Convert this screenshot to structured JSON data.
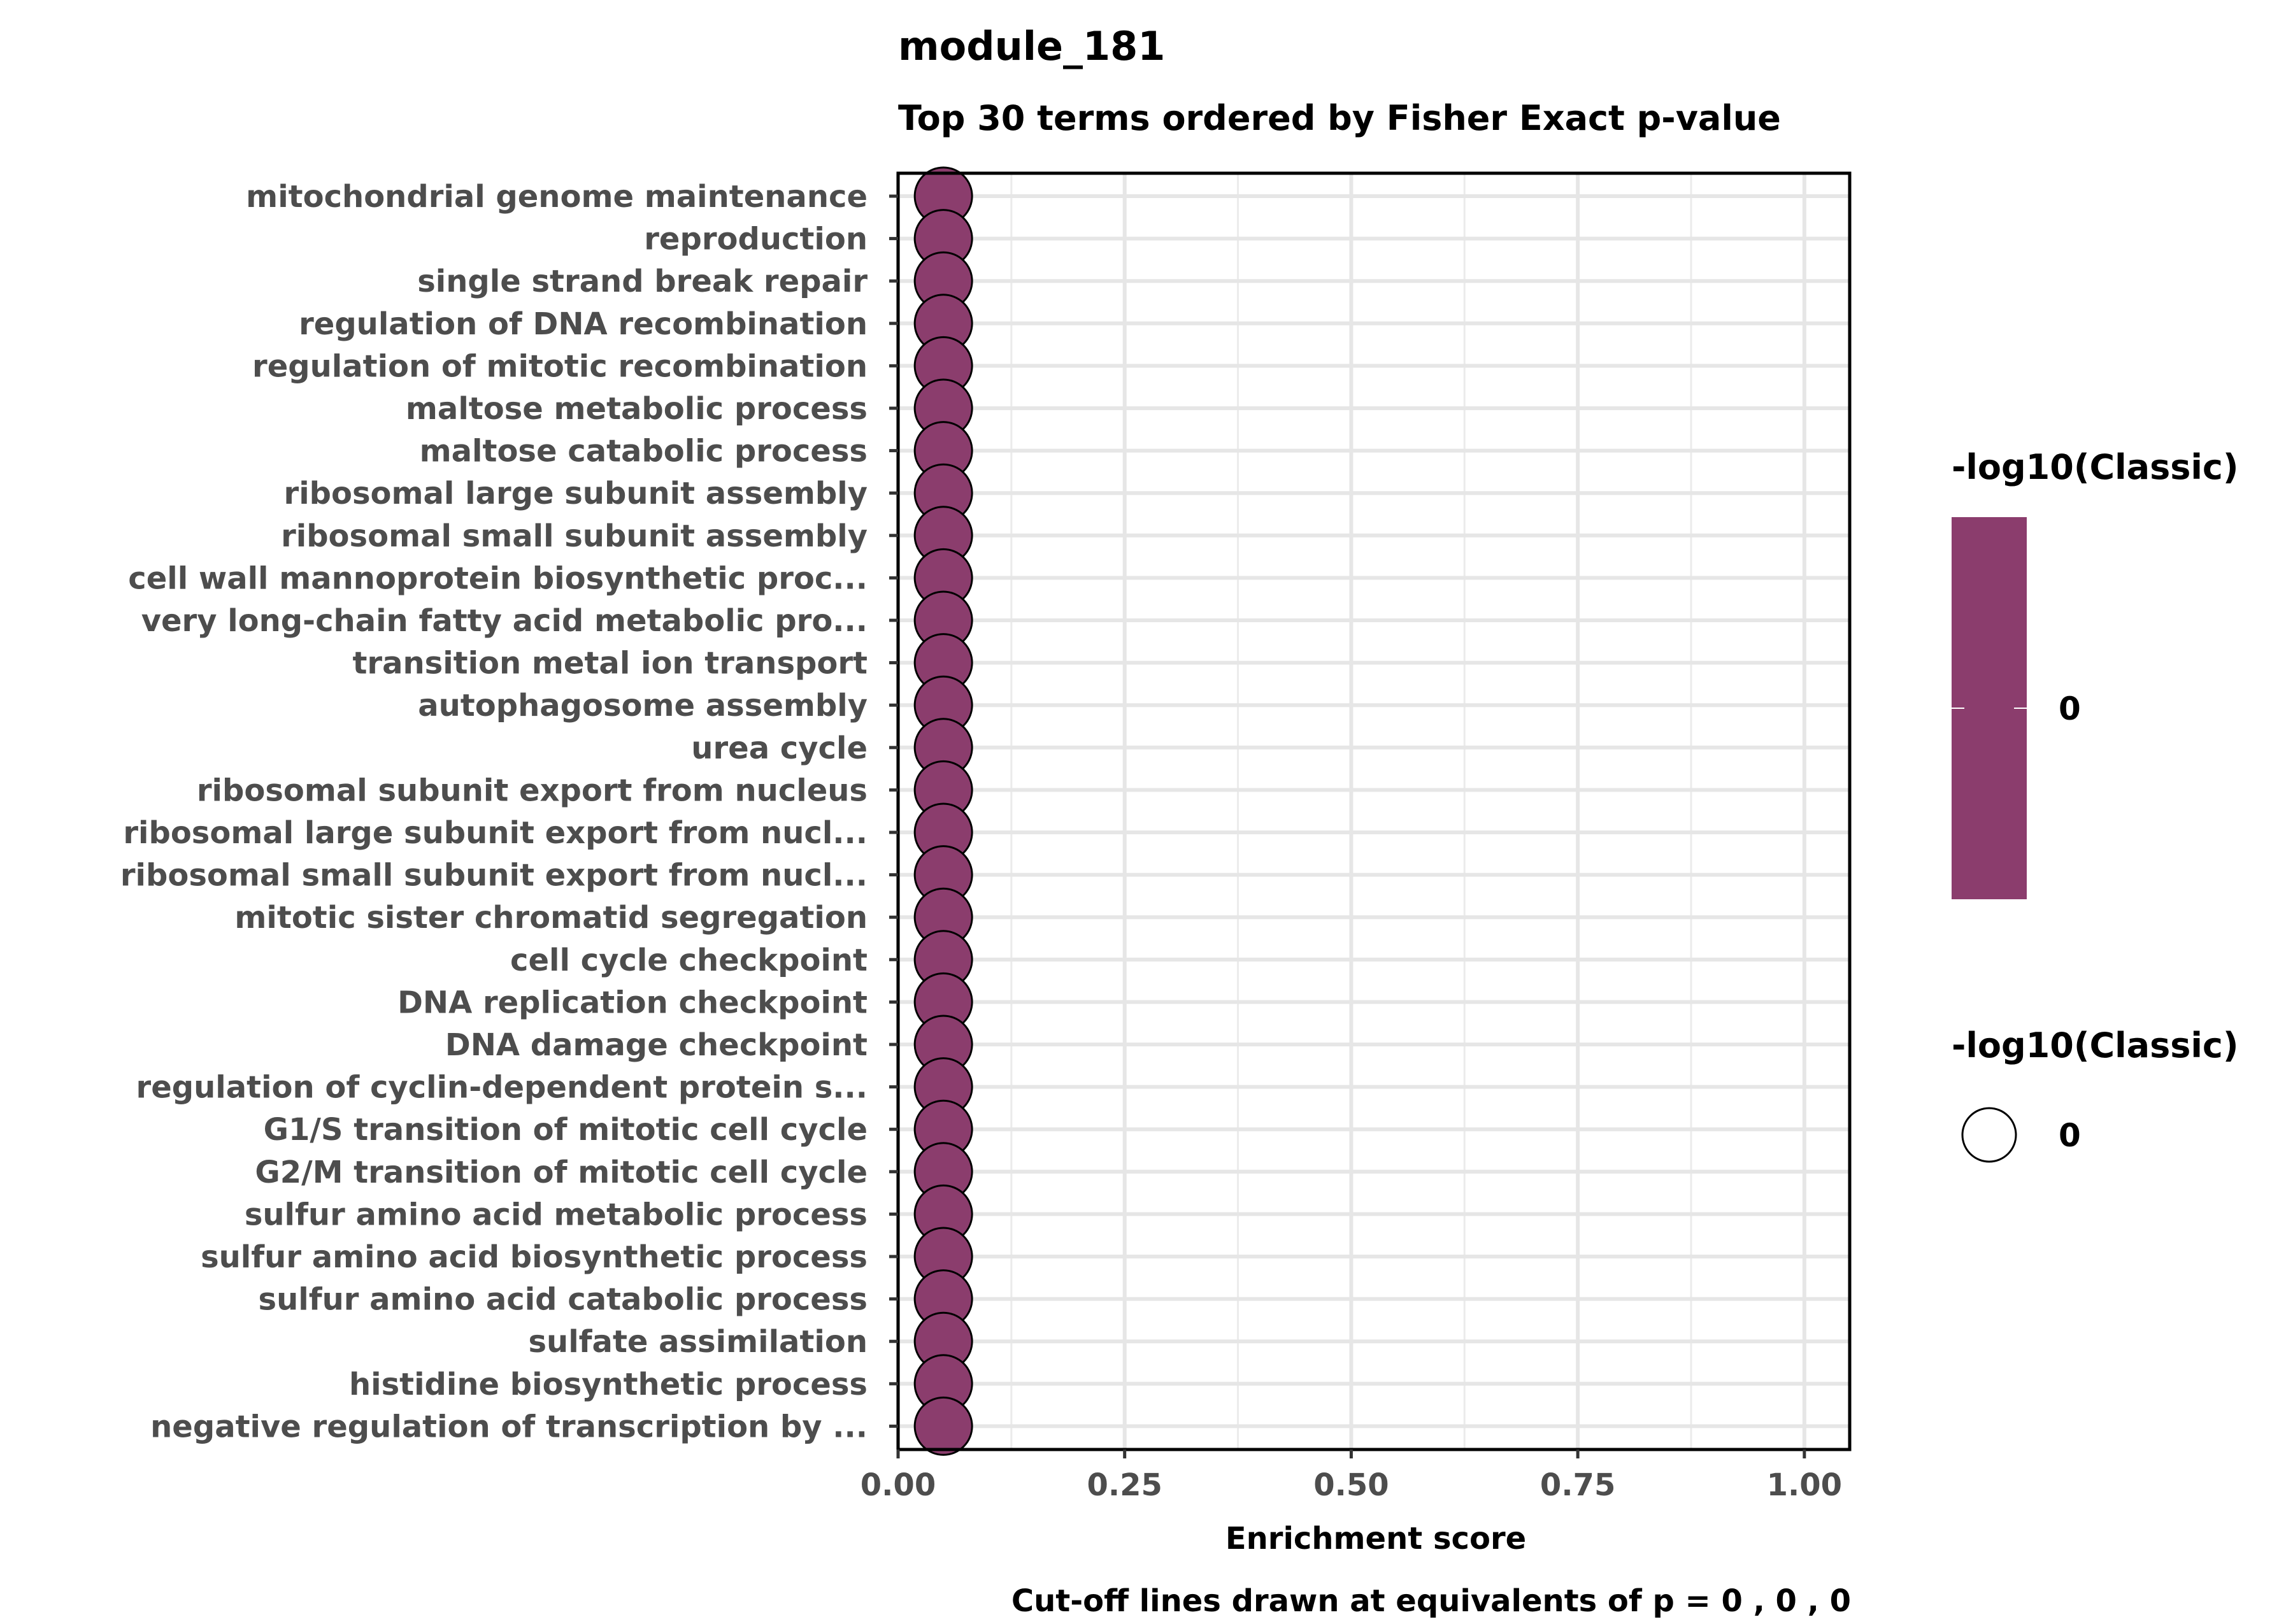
{
  "chart_data": {
    "type": "scatter",
    "title": "module_181",
    "subtitle": "Top 30 terms ordered by Fisher Exact p-value",
    "xlabel": "Enrichment score",
    "ylabel": "",
    "caption": "Cut-off lines drawn at equivalents of p = 0 , 0 , 0",
    "xlim": [
      0,
      1.05
    ],
    "xticks": [
      0,
      0.25,
      0.5,
      0.75,
      1
    ],
    "xtick_labels": [
      "0.00",
      "0.25",
      "0.50",
      "0.75",
      "1.00"
    ],
    "grid": true,
    "categories": [
      "mitochondrial genome maintenance",
      "reproduction",
      "single strand break repair",
      "regulation of DNA recombination",
      "regulation of mitotic recombination",
      "maltose metabolic process",
      "maltose catabolic process",
      "ribosomal large subunit assembly",
      "ribosomal small subunit assembly",
      "cell wall mannoprotein biosynthetic proc...",
      "very long-chain fatty acid metabolic pro...",
      "transition metal ion transport",
      "autophagosome assembly",
      "urea cycle",
      "ribosomal subunit export from nucleus",
      "ribosomal large subunit export from nucl...",
      "ribosomal small subunit export from nucl...",
      "mitotic sister chromatid segregation",
      "cell cycle checkpoint",
      "DNA replication checkpoint",
      "DNA damage checkpoint",
      "regulation of cyclin-dependent protein s...",
      "G1/S transition of mitotic cell cycle",
      "G2/M transition of mitotic cell cycle",
      "sulfur amino acid metabolic process",
      "sulfur amino acid biosynthetic process",
      "sulfur amino acid catabolic process",
      "sulfate assimilation",
      "histidine biosynthetic process",
      "negative regulation of transcription by ..."
    ],
    "values": [
      0.05,
      0.05,
      0.05,
      0.05,
      0.05,
      0.05,
      0.05,
      0.05,
      0.05,
      0.05,
      0.05,
      0.05,
      0.05,
      0.05,
      0.05,
      0.05,
      0.05,
      0.05,
      0.05,
      0.05,
      0.05,
      0.05,
      0.05,
      0.05,
      0.05,
      0.05,
      0.05,
      0.05,
      0.05,
      0.05
    ],
    "cutoff_lines": [
      0.05,
      0.05,
      0.05
    ],
    "point_color": "#8b3d6d",
    "legend": {
      "placement": "right",
      "color_title": "-log10(Classic)",
      "color_value_label": "0",
      "size_title": "-log10(Classic)",
      "size_value_label": "0"
    }
  }
}
